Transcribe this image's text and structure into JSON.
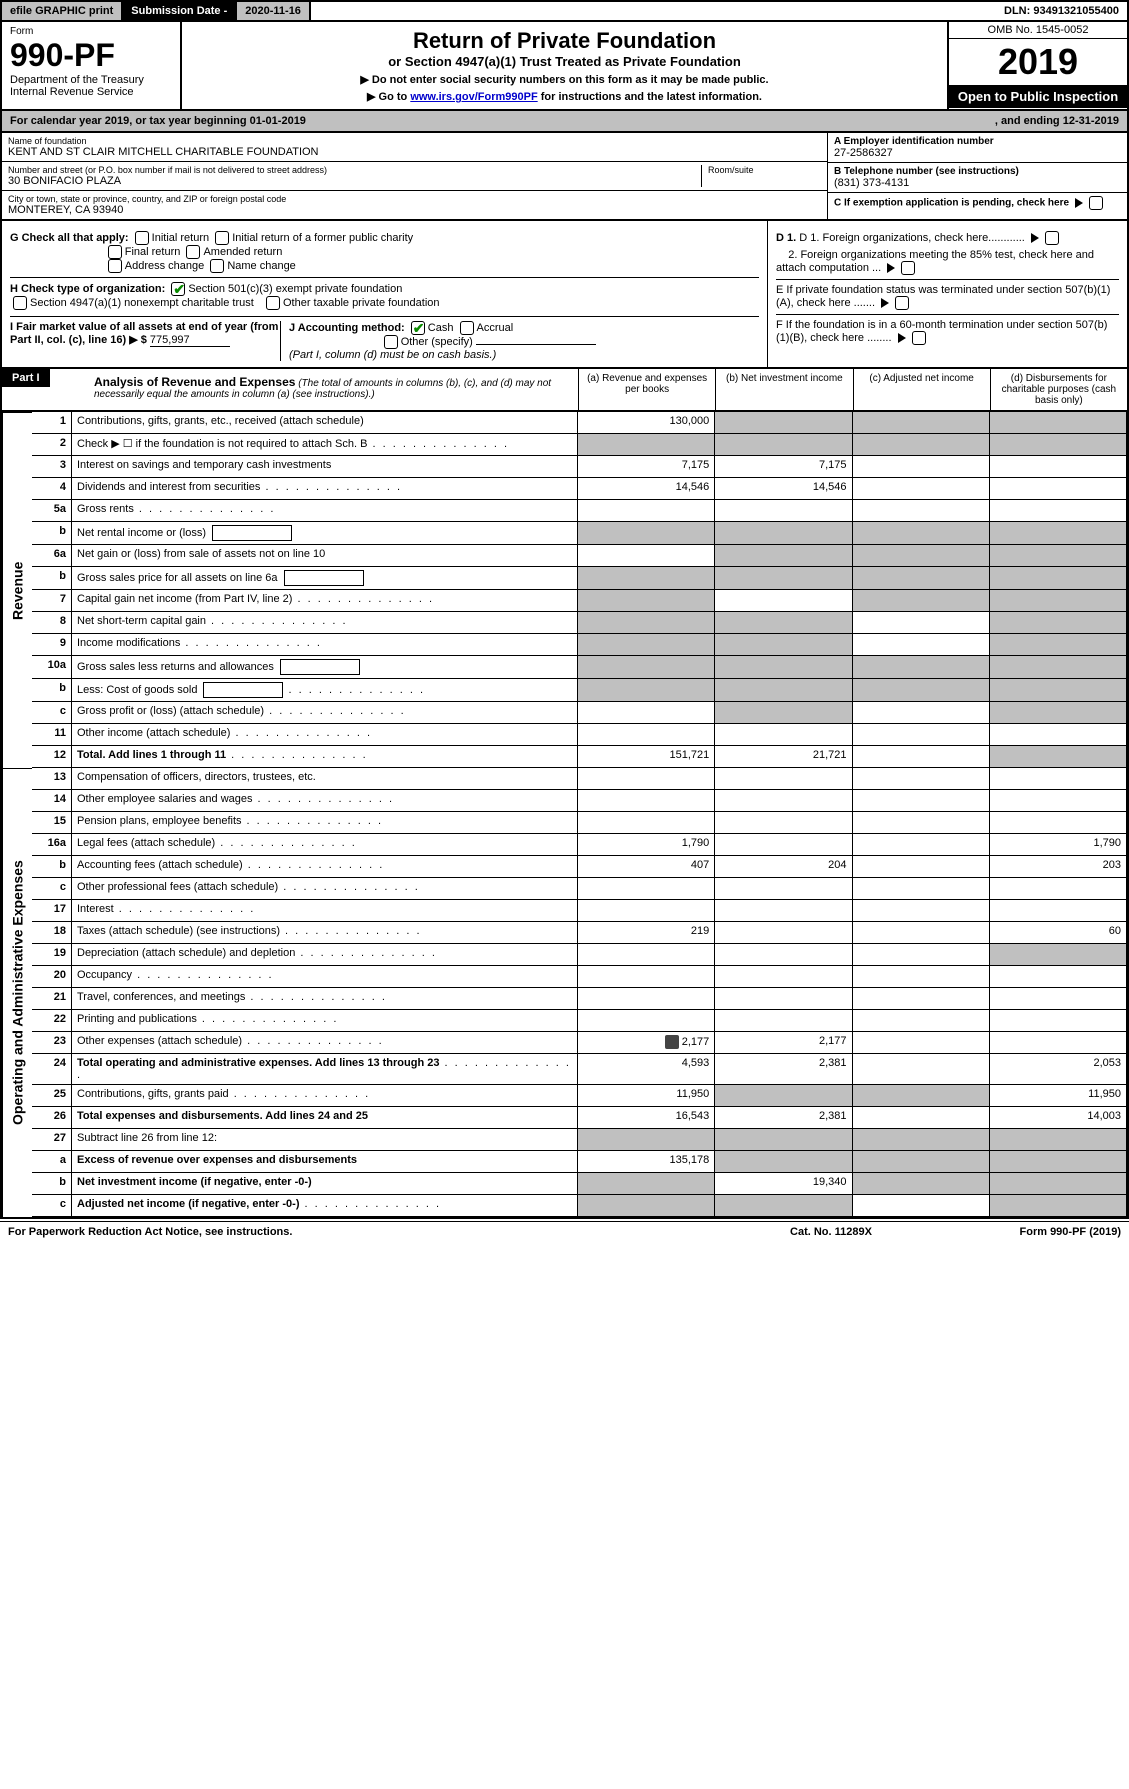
{
  "topbar": {
    "efile": "efile GRAPHIC print",
    "subdate_label": "Submission Date - ",
    "subdate": "2020-11-16",
    "dln_label": "DLN: ",
    "dln": "93491321055400"
  },
  "header": {
    "form_label": "Form",
    "form_num": "990-PF",
    "dept": "Department of the Treasury",
    "irs": "Internal Revenue Service",
    "title": "Return of Private Foundation",
    "subtitle": "or Section 4947(a)(1) Trust Treated as Private Foundation",
    "instr1": "▶ Do not enter social security numbers on this form as it may be made public.",
    "instr2_pre": "▶ Go to ",
    "instr2_link": "www.irs.gov/Form990PF",
    "instr2_post": " for instructions and the latest information.",
    "omb": "OMB No. 1545-0052",
    "year": "2019",
    "open": "Open to Public Inspection"
  },
  "cal": {
    "pre": "For calendar year 2019, or tax year beginning ",
    "beg": "01-01-2019",
    "mid": " , and ending ",
    "end": "12-31-2019"
  },
  "id": {
    "name_label": "Name of foundation",
    "name": "KENT AND ST CLAIR MITCHELL CHARITABLE FOUNDATION",
    "addr_label": "Number and street (or P.O. box number if mail is not delivered to street address)",
    "addr": "30 BONIFACIO PLAZA",
    "room_label": "Room/suite",
    "city_label": "City or town, state or province, country, and ZIP or foreign postal code",
    "city": "MONTEREY, CA  93940",
    "ein_label": "A Employer identification number",
    "ein": "27-2586327",
    "tel_label": "B Telephone number (see instructions)",
    "tel": "(831) 373-4131",
    "c_label": "C If exemption application is pending, check here"
  },
  "checks": {
    "g": "G Check all that apply:",
    "g_opts": [
      "Initial return",
      "Initial return of a former public charity",
      "Final return",
      "Amended return",
      "Address change",
      "Name change"
    ],
    "h": "H Check type of organization:",
    "h1": "Section 501(c)(3) exempt private foundation",
    "h2": "Section 4947(a)(1) nonexempt charitable trust",
    "h3": "Other taxable private foundation",
    "i": "I Fair market value of all assets at end of year (from Part II, col. (c), line 16) ▶ $",
    "i_val": "775,997",
    "j": "J Accounting method:",
    "j1": "Cash",
    "j2": "Accrual",
    "j3": "Other (specify)",
    "j_note": "(Part I, column (d) must be on cash basis.)",
    "d1": "D 1. Foreign organizations, check here............",
    "d2": "2. Foreign organizations meeting the 85% test, check here and attach computation ...",
    "e": "E  If private foundation status was terminated under section 507(b)(1)(A), check here .......",
    "f": "F  If the foundation is in a 60-month termination under section 507(b)(1)(B), check here ........"
  },
  "part1": {
    "label": "Part I",
    "title": "Analysis of Revenue and Expenses",
    "note": "(The total of amounts in columns (b), (c), and (d) may not necessarily equal the amounts in column (a) (see instructions).)",
    "cols": {
      "a": "(a)   Revenue and expenses per books",
      "b": "(b)   Net investment income",
      "c": "(c)   Adjusted net income",
      "d": "(d)   Disbursements for charitable purposes (cash basis only)"
    }
  },
  "sides": {
    "rev": "Revenue",
    "exp": "Operating and Administrative Expenses"
  },
  "rows": [
    {
      "n": "1",
      "d": "Contributions, gifts, grants, etc., received (attach schedule)",
      "a": "130,000",
      "shade": [
        "b",
        "c",
        "d"
      ]
    },
    {
      "n": "2",
      "d": "Check ▶ ☐ if the foundation is not required to attach Sch. B",
      "dots": true,
      "shade": [
        "a",
        "b",
        "c",
        "d"
      ]
    },
    {
      "n": "3",
      "d": "Interest on savings and temporary cash investments",
      "a": "7,175",
      "b": "7,175"
    },
    {
      "n": "4",
      "d": "Dividends and interest from securities",
      "dots": true,
      "a": "14,546",
      "b": "14,546"
    },
    {
      "n": "5a",
      "d": "Gross rents",
      "dots": true
    },
    {
      "n": "b",
      "d": "Net rental income or (loss)",
      "box": true,
      "shade": [
        "a",
        "b",
        "c",
        "d"
      ]
    },
    {
      "n": "6a",
      "d": "Net gain or (loss) from sale of assets not on line 10",
      "shade": [
        "b",
        "c",
        "d"
      ]
    },
    {
      "n": "b",
      "d": "Gross sales price for all assets on line 6a",
      "box": true,
      "shade": [
        "a",
        "b",
        "c",
        "d"
      ]
    },
    {
      "n": "7",
      "d": "Capital gain net income (from Part IV, line 2)",
      "dots": true,
      "shade": [
        "a",
        "c",
        "d"
      ]
    },
    {
      "n": "8",
      "d": "Net short-term capital gain",
      "dots": true,
      "shade": [
        "a",
        "b",
        "d"
      ]
    },
    {
      "n": "9",
      "d": "Income modifications",
      "dots": true,
      "shade": [
        "a",
        "b",
        "d"
      ]
    },
    {
      "n": "10a",
      "d": "Gross sales less returns and allowances",
      "box": true,
      "shade": [
        "a",
        "b",
        "c",
        "d"
      ]
    },
    {
      "n": "b",
      "d": "Less: Cost of goods sold",
      "dots": true,
      "box": true,
      "shade": [
        "a",
        "b",
        "c",
        "d"
      ]
    },
    {
      "n": "c",
      "d": "Gross profit or (loss) (attach schedule)",
      "dots": true,
      "shade": [
        "b",
        "d"
      ]
    },
    {
      "n": "11",
      "d": "Other income (attach schedule)",
      "dots": true
    },
    {
      "n": "12",
      "d": "Total. Add lines 1 through 11",
      "dots": true,
      "bold": true,
      "a": "151,721",
      "b": "21,721",
      "shade": [
        "d"
      ]
    },
    {
      "n": "13",
      "d": "Compensation of officers, directors, trustees, etc."
    },
    {
      "n": "14",
      "d": "Other employee salaries and wages",
      "dots": true
    },
    {
      "n": "15",
      "d": "Pension plans, employee benefits",
      "dots": true
    },
    {
      "n": "16a",
      "d": "Legal fees (attach schedule)",
      "dots": true,
      "a": "1,790",
      "dcol": "1,790"
    },
    {
      "n": "b",
      "d": "Accounting fees (attach schedule)",
      "dots": true,
      "a": "407",
      "b": "204",
      "dcol": "203"
    },
    {
      "n": "c",
      "d": "Other professional fees (attach schedule)",
      "dots": true
    },
    {
      "n": "17",
      "d": "Interest",
      "dots": true
    },
    {
      "n": "18",
      "d": "Taxes (attach schedule) (see instructions)",
      "dots": true,
      "a": "219",
      "dcol": "60"
    },
    {
      "n": "19",
      "d": "Depreciation (attach schedule) and depletion",
      "dots": true,
      "shade": [
        "d"
      ]
    },
    {
      "n": "20",
      "d": "Occupancy",
      "dots": true
    },
    {
      "n": "21",
      "d": "Travel, conferences, and meetings",
      "dots": true
    },
    {
      "n": "22",
      "d": "Printing and publications",
      "dots": true
    },
    {
      "n": "23",
      "d": "Other expenses (attach schedule)",
      "dots": true,
      "icon": true,
      "a": "2,177",
      "b": "2,177"
    },
    {
      "n": "24",
      "d": "Total operating and administrative expenses. Add lines 13 through 23",
      "dots": true,
      "bold": true,
      "a": "4,593",
      "b": "2,381",
      "dcol": "2,053"
    },
    {
      "n": "25",
      "d": "Contributions, gifts, grants paid",
      "dots": true,
      "a": "11,950",
      "shade": [
        "b",
        "c"
      ],
      "dcol": "11,950"
    },
    {
      "n": "26",
      "d": "Total expenses and disbursements. Add lines 24 and 25",
      "bold": true,
      "a": "16,543",
      "b": "2,381",
      "dcol": "14,003"
    },
    {
      "n": "27",
      "d": "Subtract line 26 from line 12:",
      "shade": [
        "a",
        "b",
        "c",
        "d"
      ]
    },
    {
      "n": "a",
      "d": "Excess of revenue over expenses and disbursements",
      "bold": true,
      "a": "135,178",
      "shade": [
        "b",
        "c",
        "d"
      ]
    },
    {
      "n": "b",
      "d": "Net investment income (if negative, enter -0-)",
      "bold": true,
      "b": "19,340",
      "shade": [
        "a",
        "c",
        "d"
      ]
    },
    {
      "n": "c",
      "d": "Adjusted net income (if negative, enter -0-)",
      "dots": true,
      "bold": true,
      "shade": [
        "a",
        "b",
        "d"
      ]
    }
  ],
  "footer": {
    "pra": "For Paperwork Reduction Act Notice, see instructions.",
    "cat": "Cat. No. 11289X",
    "form": "Form 990-PF (2019)"
  }
}
